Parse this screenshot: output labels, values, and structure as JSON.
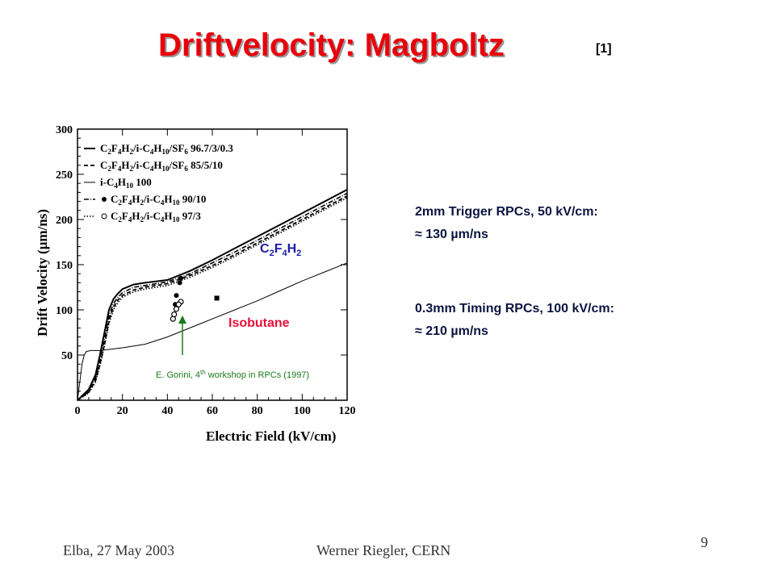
{
  "slide": {
    "title": "Driftvelocity: Magboltz",
    "reference": "[1]",
    "page_number": "9",
    "footer_left": "Elba, 27 May 2003",
    "footer_center": "Werner Riegler, CERN"
  },
  "notes": [
    {
      "heading": "2mm Trigger RPCs, 50 kV/cm:",
      "value": "≈ 130 µm/ns"
    },
    {
      "heading": "0.3mm Timing RPCs, 100 kV/cm:",
      "value": "≈ 210 µm/ns"
    }
  ],
  "colors": {
    "title": "#e8000b",
    "isobutane_label": "#e8103a",
    "c2f4h2_label": "#1a1aa8",
    "arrow": "#1a7a1a",
    "notes": "#0b1440"
  },
  "chart_data": {
    "type": "line",
    "xlabel": "Electric Field (kV/cm)",
    "ylabel": "Drift Velocity (μm/ns)",
    "xlim": [
      0,
      120
    ],
    "ylim": [
      0,
      300
    ],
    "xticks": [
      "0",
      "20",
      "40",
      "60",
      "80",
      "100",
      "120"
    ],
    "yticks": [
      "50",
      "100",
      "150",
      "200",
      "250",
      "300"
    ],
    "legend_position": "top-left",
    "legend": [
      {
        "style": "solid",
        "marker": "",
        "label": "C2F4H2/i-C4H10/SF6 96.7/3/0.3"
      },
      {
        "style": "dashed",
        "marker": "",
        "label": "C2F4H2/i-C4H10/SF6 85/5/10"
      },
      {
        "style": "thin",
        "marker": "",
        "label": "i-C4H10 100"
      },
      {
        "style": "dashdot",
        "marker": "filled-circle",
        "label": "C2F4H2/i-C4H10 90/10"
      },
      {
        "style": "dotted",
        "marker": "open-circle",
        "label": "C2F4H2/i-C4H10 97/3"
      }
    ],
    "series": [
      {
        "name": "C2F4H2/i-C4H10/SF6 96.7/3/0.3",
        "style": "solid",
        "x": [
          0,
          5,
          8,
          10,
          12,
          14,
          16,
          18,
          20,
          25,
          30,
          40,
          50,
          60,
          70,
          80,
          90,
          100,
          110,
          120
        ],
        "y": [
          0,
          12,
          28,
          50,
          75,
          100,
          112,
          118,
          123,
          128,
          130,
          133,
          143,
          155,
          168,
          181,
          194,
          207,
          220,
          233
        ]
      },
      {
        "name": "C2F4H2/i-C4H10/SF6 85/5/10",
        "style": "dashed",
        "x": [
          0,
          5,
          8,
          10,
          12,
          14,
          16,
          18,
          20,
          25,
          30,
          40,
          50,
          60,
          70,
          80,
          90,
          100,
          110,
          120
        ],
        "y": [
          0,
          9,
          22,
          40,
          62,
          88,
          103,
          111,
          116,
          122,
          125,
          129,
          138,
          149,
          161,
          174,
          187,
          200,
          213,
          226
        ]
      },
      {
        "name": "i-C4H10 100",
        "style": "thin",
        "x": [
          0,
          1,
          2,
          3,
          4,
          6,
          10,
          20,
          30,
          40,
          50,
          60,
          70,
          80,
          90,
          100,
          110,
          120
        ],
        "y": [
          0,
          20,
          40,
          50,
          54,
          55,
          55,
          58,
          62,
          70,
          80,
          90,
          100,
          110,
          121,
          132,
          142,
          152
        ]
      },
      {
        "name": "C2F4H2/i-C4H10 90/10",
        "style": "dashdot",
        "x": [
          0,
          5,
          8,
          10,
          12,
          14,
          16,
          18,
          20,
          25,
          30,
          40,
          50,
          60,
          70,
          80,
          90,
          100,
          110,
          120
        ],
        "y": [
          0,
          10,
          25,
          45,
          68,
          93,
          107,
          114,
          119,
          125,
          127,
          131,
          140,
          152,
          164,
          177,
          190,
          203,
          216,
          229
        ]
      },
      {
        "name": "C2F4H2/i-C4H10 97/3",
        "style": "dotted",
        "x": [
          0,
          5,
          8,
          10,
          12,
          14,
          16,
          18,
          20,
          25,
          30,
          40,
          50,
          60,
          70,
          80,
          90,
          100,
          110,
          120
        ],
        "y": [
          0,
          8,
          20,
          38,
          60,
          85,
          100,
          108,
          114,
          120,
          123,
          127,
          136,
          147,
          159,
          172,
          185,
          198,
          211,
          224
        ]
      }
    ],
    "points": [
      {
        "x": 46,
        "y": 135,
        "marker": "filled-circle"
      },
      {
        "x": 45.5,
        "y": 130,
        "marker": "filled-circle"
      },
      {
        "x": 44,
        "y": 116,
        "marker": "filled-circle"
      },
      {
        "x": 43.5,
        "y": 106,
        "marker": "filled-circle"
      },
      {
        "x": 42.5,
        "y": 90,
        "marker": "filled-circle"
      },
      {
        "x": 46,
        "y": 109,
        "marker": "open-circle"
      },
      {
        "x": 45,
        "y": 106,
        "marker": "open-circle"
      },
      {
        "x": 44,
        "y": 101,
        "marker": "open-circle"
      },
      {
        "x": 43,
        "y": 95,
        "marker": "open-circle"
      },
      {
        "x": 42.5,
        "y": 90,
        "marker": "open-circle"
      },
      {
        "x": 62,
        "y": 113,
        "marker": "filled-square"
      }
    ],
    "annotations": [
      {
        "text": "C2F4H2",
        "x": 80,
        "y": 163
      },
      {
        "text": "Isobutane",
        "x": 62,
        "y": 86
      },
      {
        "text": "E. Gorini, 4th workshop  in RPCs (1997)",
        "x": 35,
        "y": 24
      }
    ]
  }
}
